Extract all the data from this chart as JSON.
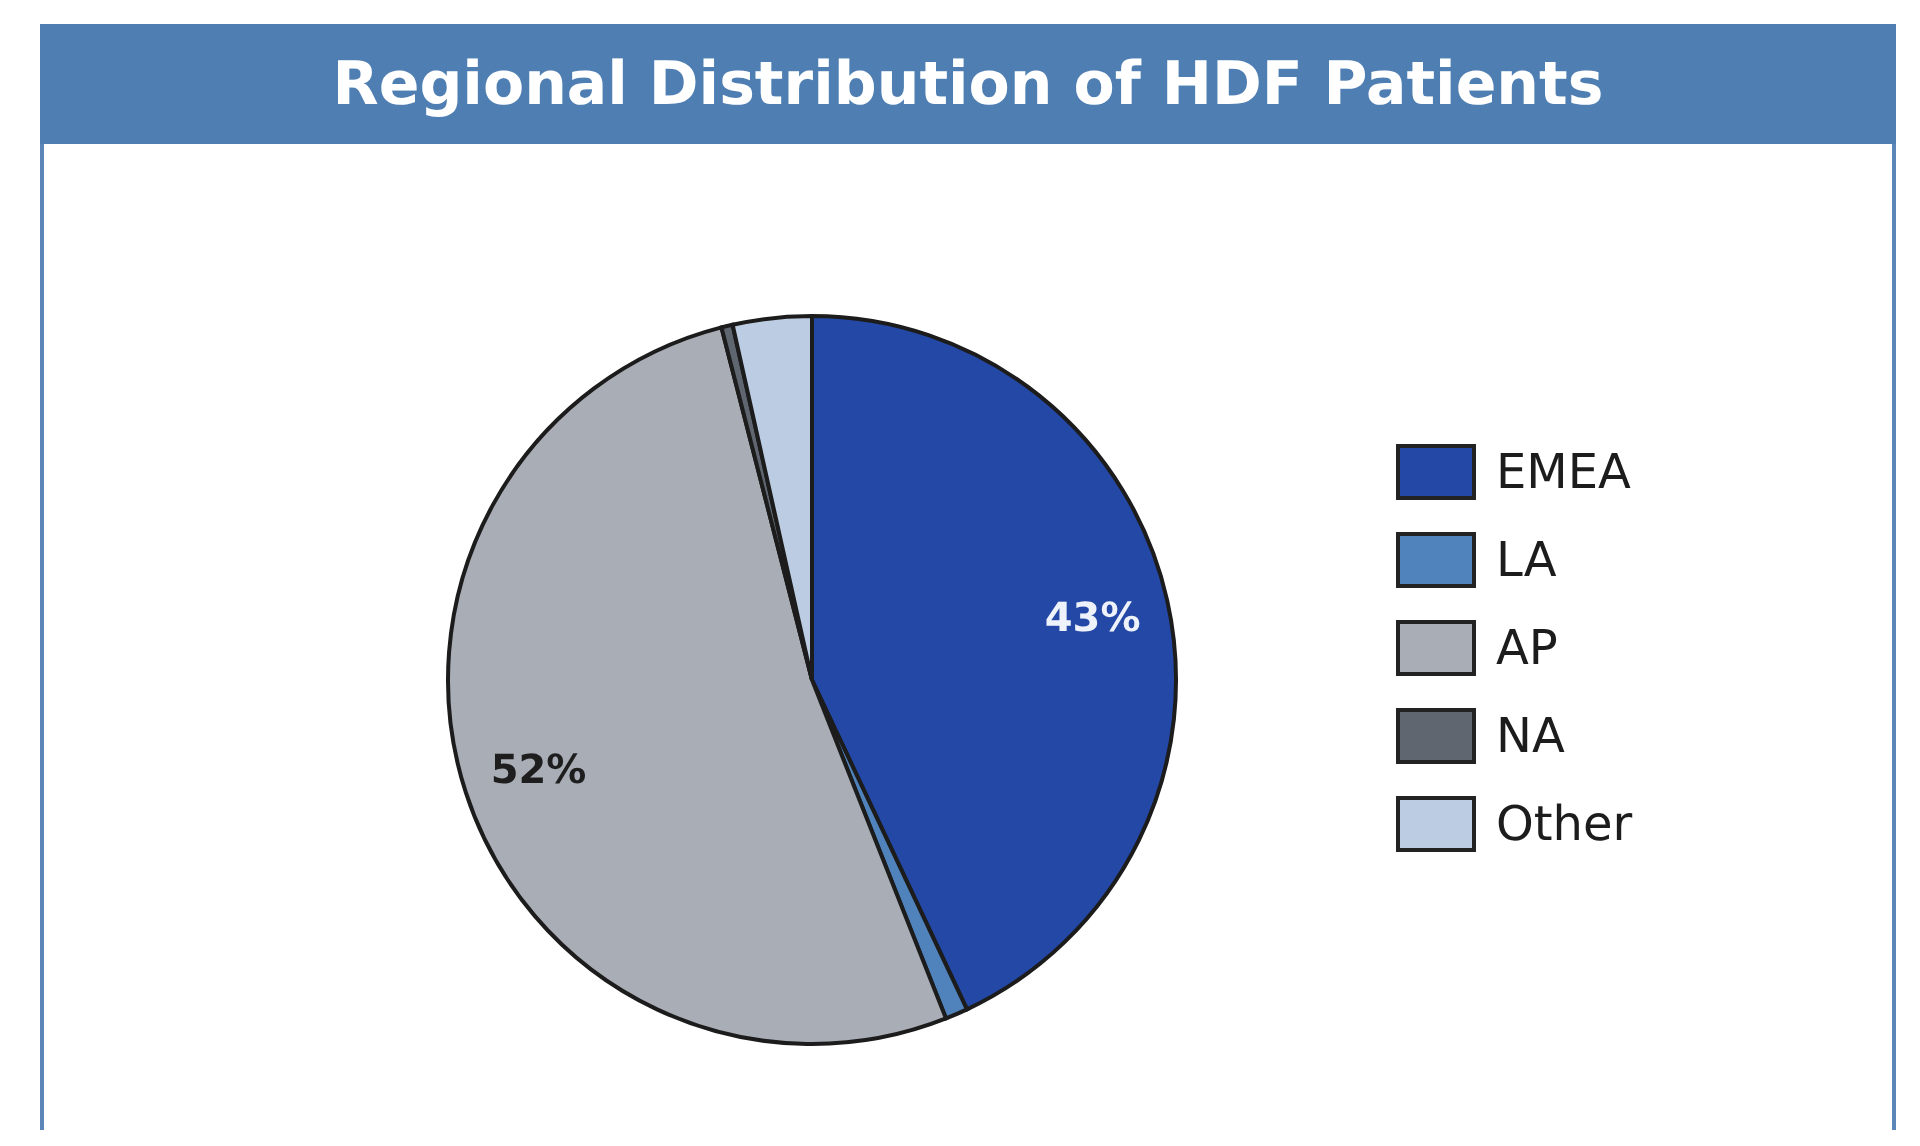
{
  "chart_data": {
    "type": "pie",
    "title": "Regional Distribution of HDF Patients",
    "categories": [
      "EMEA",
      "LA",
      "AP",
      "NA",
      "Other"
    ],
    "values": [
      43,
      1,
      52,
      0.5,
      3.5
    ],
    "colors": [
      "#2448a5",
      "#5083bb",
      "#a9adb6",
      "#5f6670",
      "#bccde3"
    ],
    "value_labels": [
      "43%",
      null,
      "52%",
      null,
      null
    ],
    "legend": "right"
  }
}
